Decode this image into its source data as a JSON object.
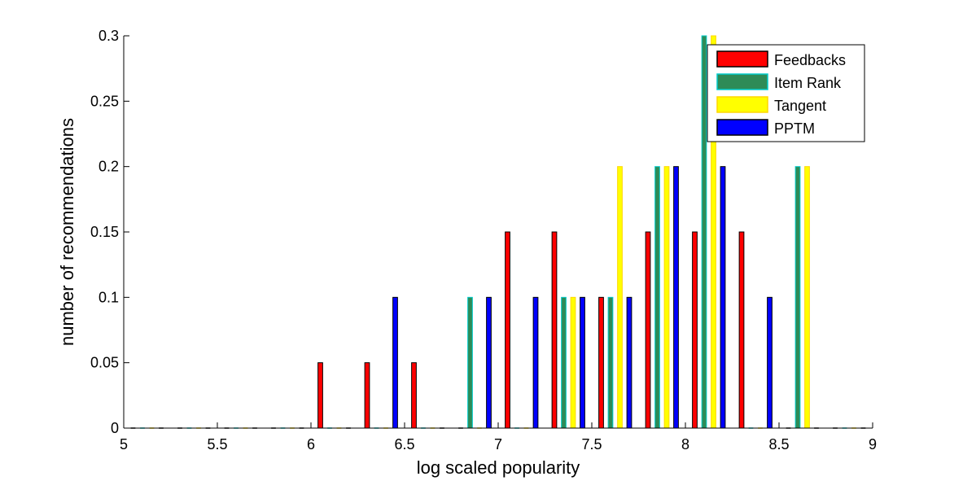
{
  "chart_data": {
    "type": "bar",
    "title": "",
    "xlabel": "log scaled popularity",
    "ylabel": "number of recommendations",
    "xlim": [
      5,
      9
    ],
    "ylim": [
      0,
      0.3
    ],
    "xticks": [
      "5",
      "5.5",
      "6",
      "6.5",
      "7",
      "7.5",
      "8",
      "8.5",
      "9"
    ],
    "yticks": [
      "0",
      "0.05",
      "0.1",
      "0.15",
      "0.2",
      "0.25",
      "0.3"
    ],
    "bin_centers": [
      5.125,
      5.375,
      5.625,
      5.875,
      6.125,
      6.375,
      6.625,
      6.875,
      7.125,
      7.375,
      7.625,
      7.875,
      8.125,
      8.375,
      8.625,
      8.875
    ],
    "grid": false,
    "legend_position": "top-right",
    "series": [
      {
        "name": "Feedbacks",
        "color": "#ff0000",
        "edge": "#000000",
        "values": [
          0,
          0,
          0,
          0,
          0.05,
          0.05,
          0.05,
          0,
          0.15,
          0.15,
          0.1,
          0.15,
          0.15,
          0.15,
          0,
          0
        ]
      },
      {
        "name": "Item Rank",
        "color": "#2e8b57",
        "edge": "#00cccc",
        "values": [
          0,
          0,
          0,
          0,
          0,
          0,
          0,
          0.1,
          0,
          0.1,
          0.1,
          0.2,
          0.3,
          0,
          0.2,
          0
        ]
      },
      {
        "name": "Tangent",
        "color": "#ffff00",
        "edge": "#ffd700",
        "values": [
          0,
          0,
          0,
          0,
          0,
          0,
          0,
          0,
          0,
          0.1,
          0.2,
          0.2,
          0.3,
          0,
          0.2,
          0
        ]
      },
      {
        "name": "PPTM",
        "color": "#0000ff",
        "edge": "#000000",
        "values": [
          0,
          0,
          0,
          0,
          0,
          0.1,
          0,
          0.1,
          0.1,
          0.1,
          0.1,
          0.2,
          0.2,
          0.1,
          0,
          0
        ]
      }
    ]
  }
}
